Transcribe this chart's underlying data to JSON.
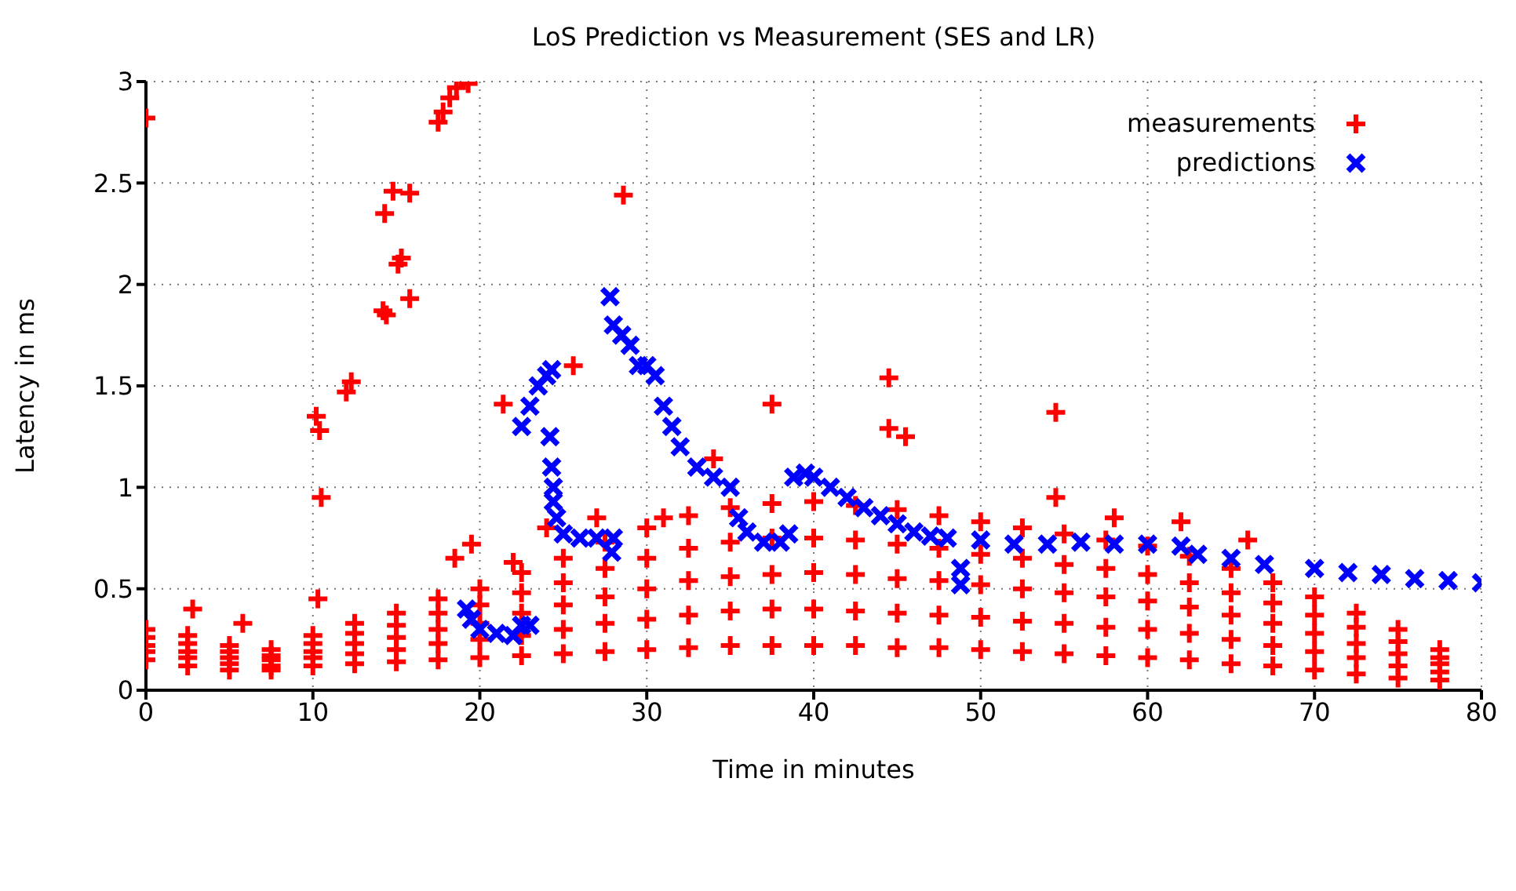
{
  "chart_data": {
    "type": "scatter",
    "title": "LoS Prediction vs Measurement (SES and LR)",
    "xlabel": "Time in minutes",
    "ylabel": "Latency in ms",
    "xlim": [
      0,
      80
    ],
    "xticks": [
      0,
      10,
      20,
      30,
      40,
      50,
      60,
      70,
      80
    ],
    "ylim": [
      0,
      3
    ],
    "yticks": [
      0,
      0.5,
      1,
      1.5,
      2,
      2.5,
      3
    ],
    "grid": true,
    "legend": "top right",
    "series": [
      {
        "name": "measurements",
        "color": "#ff0000",
        "marker": "cross",
        "x": [
          0,
          0,
          0,
          0,
          0,
          2.5,
          2.5,
          2.5,
          2.5,
          2.5,
          5,
          5,
          5,
          5,
          5,
          7.5,
          7.5,
          7.5,
          7.5,
          7.5,
          10,
          10,
          10,
          10,
          10,
          12.5,
          12.5,
          12.5,
          12.5,
          12.5,
          15,
          15,
          15,
          15,
          15,
          17.5,
          17.5,
          17.5,
          17.5,
          17.5,
          20,
          20,
          20,
          20,
          20,
          22.5,
          22.5,
          22.5,
          22.5,
          22.5,
          25,
          25,
          25,
          25,
          25,
          27.5,
          27.5,
          27.5,
          27.5,
          27.5,
          30,
          30,
          30,
          30,
          30,
          32.5,
          32.5,
          32.5,
          32.5,
          32.5,
          35,
          35,
          35,
          35,
          35,
          37.5,
          37.5,
          37.5,
          37.5,
          37.5,
          40,
          40,
          40,
          40,
          40,
          42.5,
          42.5,
          42.5,
          42.5,
          42.5,
          45,
          45,
          45,
          45,
          45,
          47.5,
          47.5,
          47.5,
          47.5,
          47.5,
          50,
          50,
          50,
          50,
          50,
          52.5,
          52.5,
          52.5,
          52.5,
          52.5,
          55,
          55,
          55,
          55,
          55,
          57.5,
          57.5,
          57.5,
          57.5,
          57.5,
          60,
          60,
          60,
          60,
          60,
          62.5,
          62.5,
          62.5,
          62.5,
          62.5,
          65,
          65,
          65,
          65,
          65,
          67.5,
          67.5,
          67.5,
          67.5,
          67.5,
          70,
          70,
          70,
          70,
          70,
          72.5,
          72.5,
          72.5,
          72.5,
          72.5,
          75,
          75,
          75,
          75,
          75,
          77.5,
          77.5,
          77.5,
          77.5,
          77.5,
          0,
          10.2,
          10.4,
          10.5,
          10.3,
          2.8,
          5.8,
          12,
          12.3,
          14.2,
          14.4,
          14.3,
          15.1,
          15.3,
          14.8,
          15.8,
          15.8,
          17.5,
          17.8,
          18.2,
          18.6,
          19.3,
          18.5,
          19.5,
          21.4,
          25.6,
          28.6,
          37.5,
          44.5,
          44.5,
          45.5,
          54.5,
          54.5,
          58,
          62,
          66,
          34,
          22,
          24,
          27,
          31
        ],
        "values": [
          0.15,
          0.19,
          0.22,
          0.26,
          0.3,
          0.12,
          0.16,
          0.19,
          0.23,
          0.27,
          0.1,
          0.13,
          0.16,
          0.19,
          0.22,
          0.1,
          0.12,
          0.15,
          0.17,
          0.2,
          0.12,
          0.16,
          0.19,
          0.23,
          0.27,
          0.13,
          0.18,
          0.23,
          0.28,
          0.33,
          0.14,
          0.2,
          0.26,
          0.32,
          0.38,
          0.15,
          0.23,
          0.3,
          0.38,
          0.45,
          0.16,
          0.25,
          0.33,
          0.42,
          0.5,
          0.17,
          0.27,
          0.38,
          0.48,
          0.58,
          0.18,
          0.3,
          0.42,
          0.53,
          0.65,
          0.19,
          0.33,
          0.46,
          0.6,
          0.73,
          0.2,
          0.35,
          0.5,
          0.65,
          0.8,
          0.21,
          0.37,
          0.54,
          0.7,
          0.86,
          0.22,
          0.39,
          0.56,
          0.73,
          0.9,
          0.22,
          0.4,
          0.57,
          0.75,
          0.92,
          0.22,
          0.4,
          0.58,
          0.75,
          0.93,
          0.22,
          0.39,
          0.57,
          0.74,
          0.91,
          0.21,
          0.38,
          0.55,
          0.72,
          0.89,
          0.21,
          0.37,
          0.54,
          0.7,
          0.86,
          0.2,
          0.36,
          0.52,
          0.67,
          0.83,
          0.19,
          0.34,
          0.5,
          0.65,
          0.8,
          0.18,
          0.33,
          0.48,
          0.62,
          0.77,
          0.17,
          0.31,
          0.46,
          0.6,
          0.74,
          0.16,
          0.3,
          0.44,
          0.57,
          0.71,
          0.15,
          0.28,
          0.41,
          0.53,
          0.66,
          0.13,
          0.25,
          0.37,
          0.48,
          0.6,
          0.12,
          0.22,
          0.33,
          0.43,
          0.53,
          0.1,
          0.19,
          0.28,
          0.37,
          0.46,
          0.08,
          0.16,
          0.23,
          0.31,
          0.38,
          0.06,
          0.12,
          0.18,
          0.24,
          0.3,
          0.05,
          0.09,
          0.13,
          0.16,
          0.2,
          2.82,
          1.35,
          1.28,
          0.95,
          0.45,
          0.4,
          0.33,
          1.47,
          1.52,
          1.87,
          1.85,
          2.35,
          2.1,
          2.13,
          2.46,
          2.45,
          1.93,
          2.8,
          2.85,
          2.92,
          2.97,
          2.99,
          0.65,
          0.72,
          1.41,
          1.6,
          2.44,
          1.41,
          1.54,
          1.29,
          1.25,
          1.37,
          0.95,
          0.85,
          0.83,
          0.74,
          1.14,
          0.63,
          0.8,
          0.85,
          0.85
        ]
      },
      {
        "name": "predictions",
        "color": "#0000ff",
        "marker": "x",
        "x": [
          19.2,
          19.5,
          20,
          21,
          22,
          22.5,
          23,
          22.5,
          23,
          23.5,
          24,
          24.3,
          24.2,
          24.3,
          24.4,
          24.4,
          24.6,
          25,
          26,
          27,
          28,
          27.9,
          27.8,
          28,
          28.5,
          29,
          29.5,
          30,
          30.5,
          31,
          31.5,
          32,
          33,
          34,
          35,
          35.5,
          36,
          37,
          38,
          38.5,
          38.8,
          39.5,
          40,
          41,
          42,
          43,
          44,
          45,
          46,
          47,
          48,
          48.8,
          48.8,
          50,
          52,
          54,
          56,
          58,
          60,
          62,
          63,
          65,
          67,
          70,
          72,
          74,
          76,
          78,
          80
        ],
        "values": [
          0.4,
          0.35,
          0.3,
          0.28,
          0.27,
          0.32,
          0.32,
          1.3,
          1.4,
          1.5,
          1.55,
          1.58,
          1.25,
          1.1,
          1.0,
          0.93,
          0.85,
          0.77,
          0.75,
          0.75,
          0.75,
          0.68,
          1.94,
          1.8,
          1.75,
          1.7,
          1.6,
          1.6,
          1.55,
          1.4,
          1.3,
          1.2,
          1.1,
          1.05,
          1.0,
          0.85,
          0.78,
          0.73,
          0.73,
          0.77,
          1.05,
          1.07,
          1.05,
          1.0,
          0.95,
          0.9,
          0.86,
          0.82,
          0.78,
          0.76,
          0.75,
          0.6,
          0.52,
          0.74,
          0.72,
          0.72,
          0.73,
          0.72,
          0.72,
          0.71,
          0.67,
          0.65,
          0.62,
          0.6,
          0.58,
          0.57,
          0.55,
          0.54,
          0.53
        ]
      }
    ]
  }
}
